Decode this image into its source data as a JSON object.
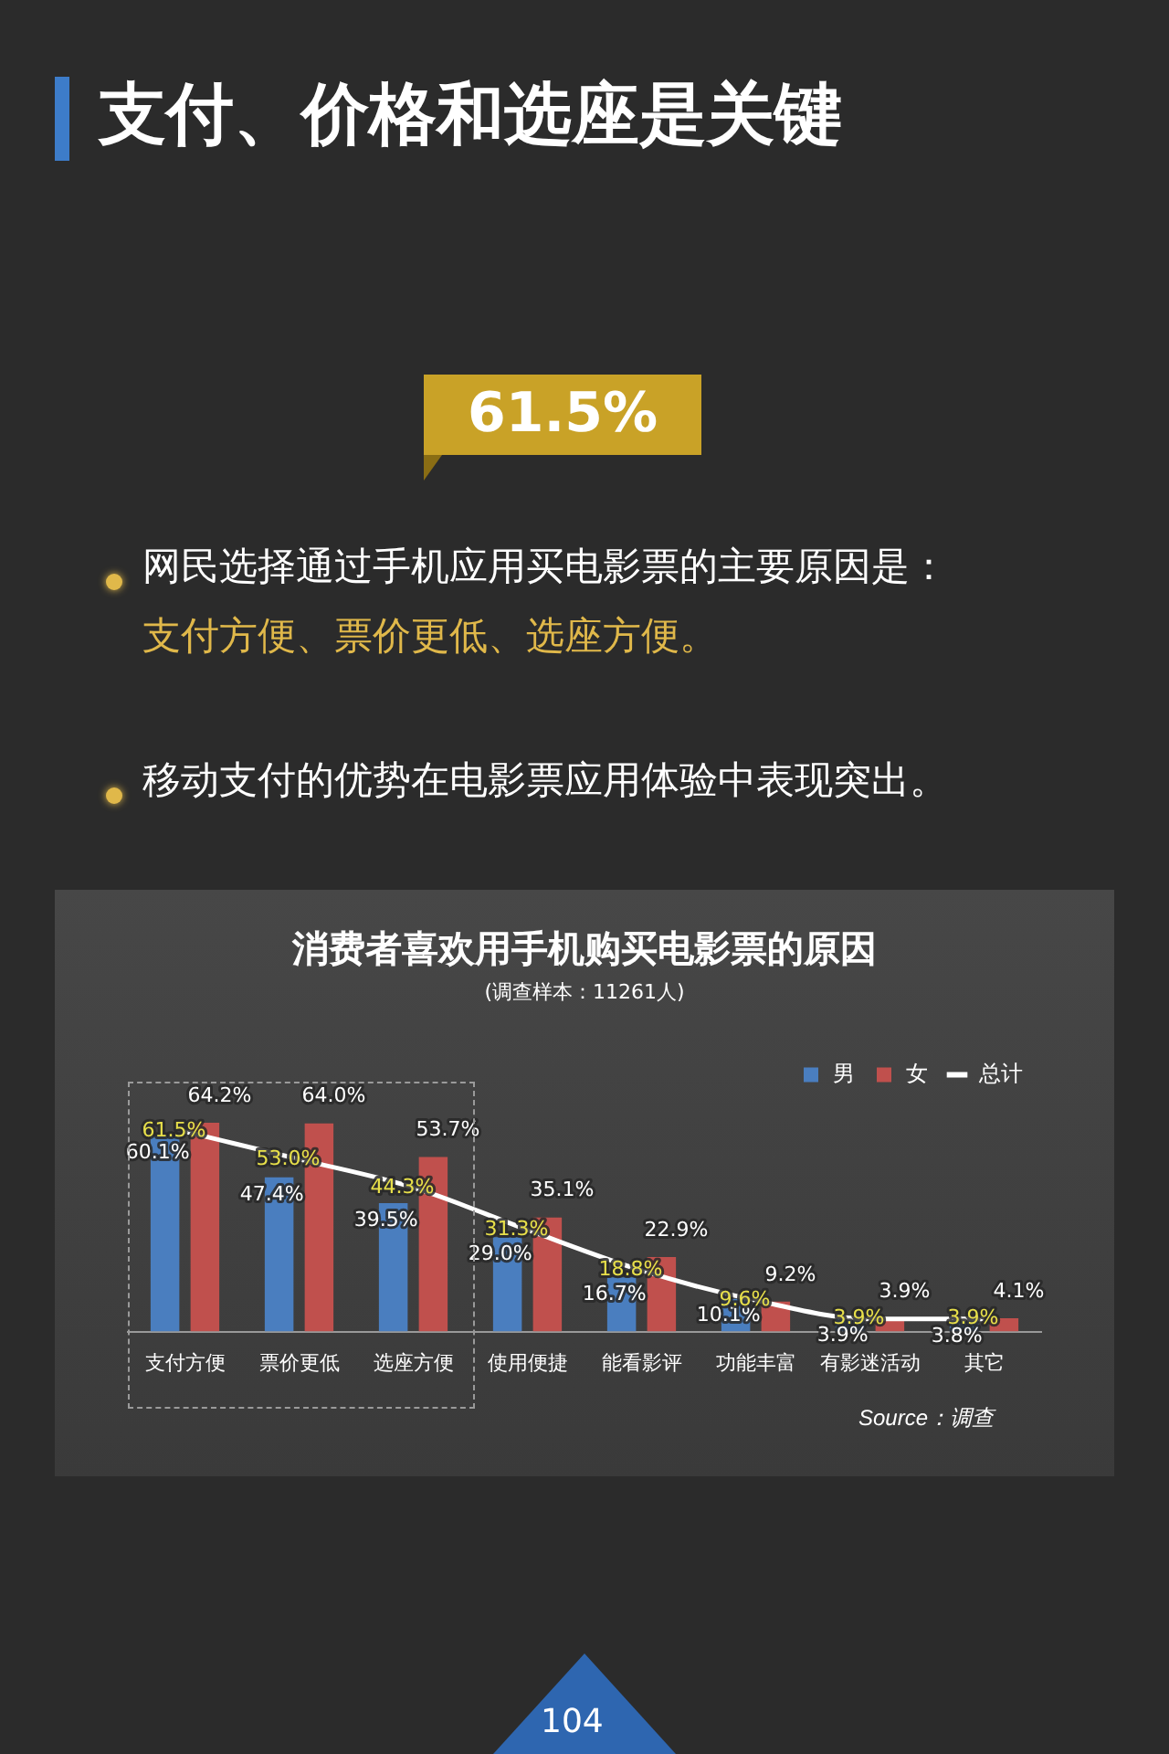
{
  "chart_data": {
    "type": "bar",
    "title": "消费者喜欢用手机购买电影票的原因",
    "subtitle": "(调查样本：11261人)",
    "categories": [
      "支付方便",
      "票价更低",
      "选座方便",
      "使用便捷",
      "能看影评",
      "功能丰富",
      "有影迷活动",
      "其它"
    ],
    "series": [
      {
        "name": "男",
        "color": "#4a7ebf",
        "values": [
          60.1,
          47.4,
          39.5,
          29.0,
          16.7,
          10.1,
          3.9,
          3.8
        ],
        "value_labels": [
          "60.1%",
          "47.4%",
          "39.5%",
          "29.0%",
          "16.7%",
          "10.1%",
          "3.9%",
          "3.8%"
        ]
      },
      {
        "name": "女",
        "color": "#c0504d",
        "values": [
          64.2,
          64.0,
          53.7,
          35.1,
          22.9,
          9.2,
          3.9,
          4.1
        ],
        "value_labels": [
          "64.2%",
          "64.0%",
          "53.7%",
          "35.1%",
          "22.9%",
          "9.2%",
          "3.9%",
          "4.1%"
        ]
      },
      {
        "name": "总计",
        "type": "line",
        "color": "#ffffff",
        "values": [
          61.5,
          53.0,
          44.3,
          31.3,
          18.8,
          9.6,
          3.9,
          3.9
        ],
        "value_labels": [
          "61.5%",
          "53.0%",
          "44.3%",
          "31.3%",
          "18.8%",
          "9.6%",
          "3.9%",
          "3.9%"
        ]
      }
    ],
    "legend": "top right",
    "marker": "none",
    "grid": false,
    "annotations": [
      "支付、价格和选座是关键",
      "61.5%",
      "网民选择通过手机应用买电影票的主要原因是：",
      "支付方便、票价更低、选座方便。",
      "移动支付的优势在电影票应用体验中表现突出。",
      "Source：调查",
      "104"
    ]
  }
}
